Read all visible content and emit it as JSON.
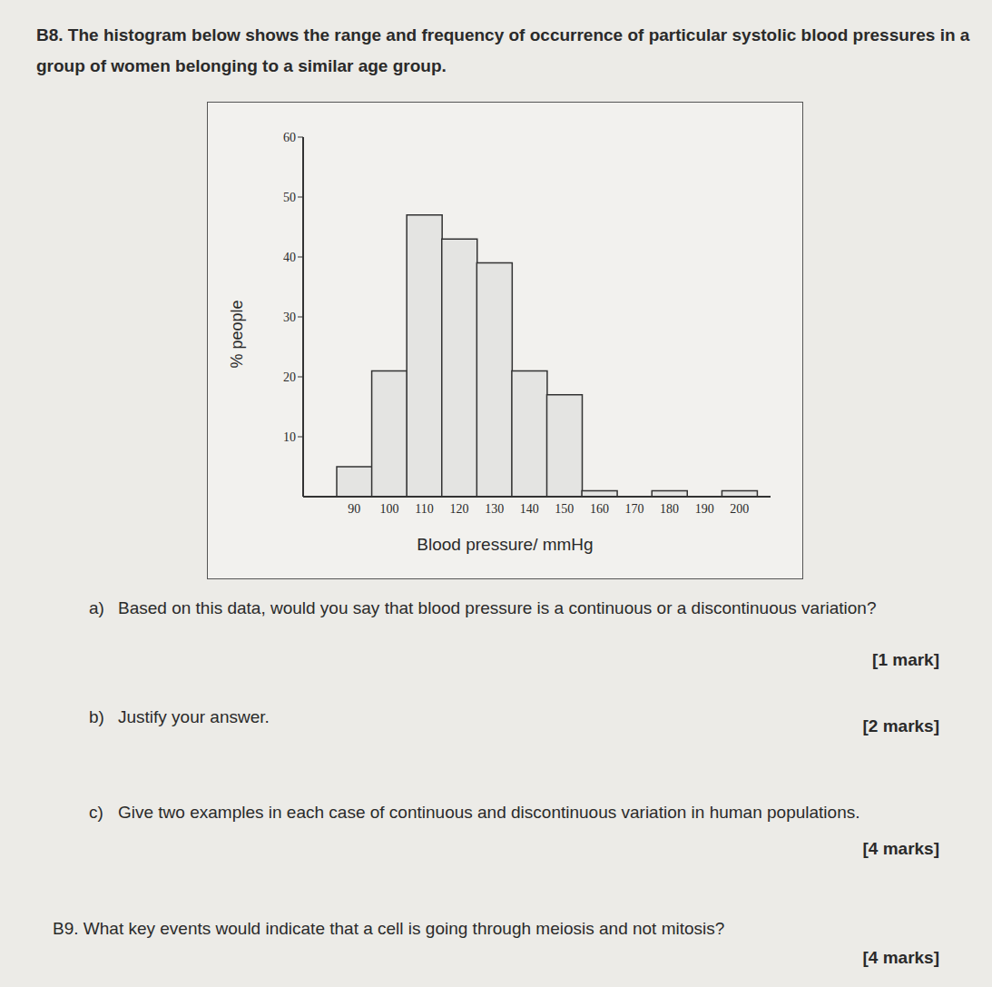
{
  "question_b8": {
    "label": "B8.",
    "text": "The histogram below shows the range and frequency of occurrence of particular systolic blood pressures in a group of women belonging to a similar age group."
  },
  "chart_data": {
    "type": "bar",
    "categories": [
      90,
      100,
      110,
      120,
      130,
      140,
      150,
      160,
      170,
      180,
      190,
      200
    ],
    "values": [
      5,
      21,
      47,
      43,
      39,
      21,
      17,
      1,
      0,
      1,
      0,
      1
    ],
    "color": "#e4e4e2",
    "ylim": [
      0,
      60
    ],
    "yticks": [
      10,
      20,
      30,
      40,
      50,
      60
    ],
    "x_label": "Blood pressure/ mmHg",
    "y_label": "% people",
    "grid": false
  },
  "parts": [
    {
      "label": "a)",
      "text": "Based on this data, would you say that blood pressure is a continuous or a discontinuous variation?",
      "marks": "[1 mark]"
    },
    {
      "label": "b)",
      "text": "Justify your answer.",
      "marks": "[2 marks]"
    },
    {
      "label": "c)",
      "text": "Give two examples in each case of continuous and discontinuous variation in human populations.",
      "marks": "[4 marks]"
    }
  ],
  "question_b9": {
    "label": "B9.",
    "text": "What key events would indicate that a cell is going through meiosis and not mitosis?",
    "marks": "[4 marks]"
  }
}
